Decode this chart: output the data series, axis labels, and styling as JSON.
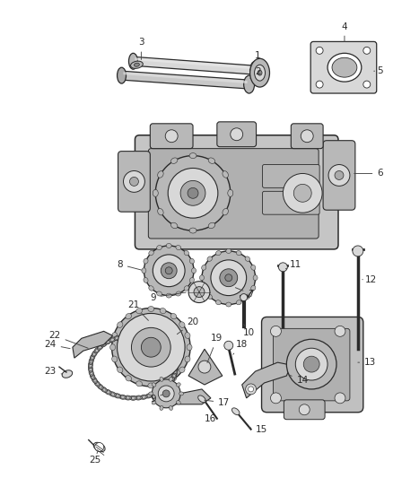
{
  "bg_color": "#ffffff",
  "fig_width": 4.38,
  "fig_height": 5.33,
  "dpi": 100,
  "label_fontsize": 7.5,
  "label_color": "#2a2a2a",
  "line_color": "#444444",
  "draw_color": "#2a2a2a",
  "fill_light": "#d8d8d8",
  "fill_mid": "#b8b8b8",
  "fill_dark": "#888888"
}
